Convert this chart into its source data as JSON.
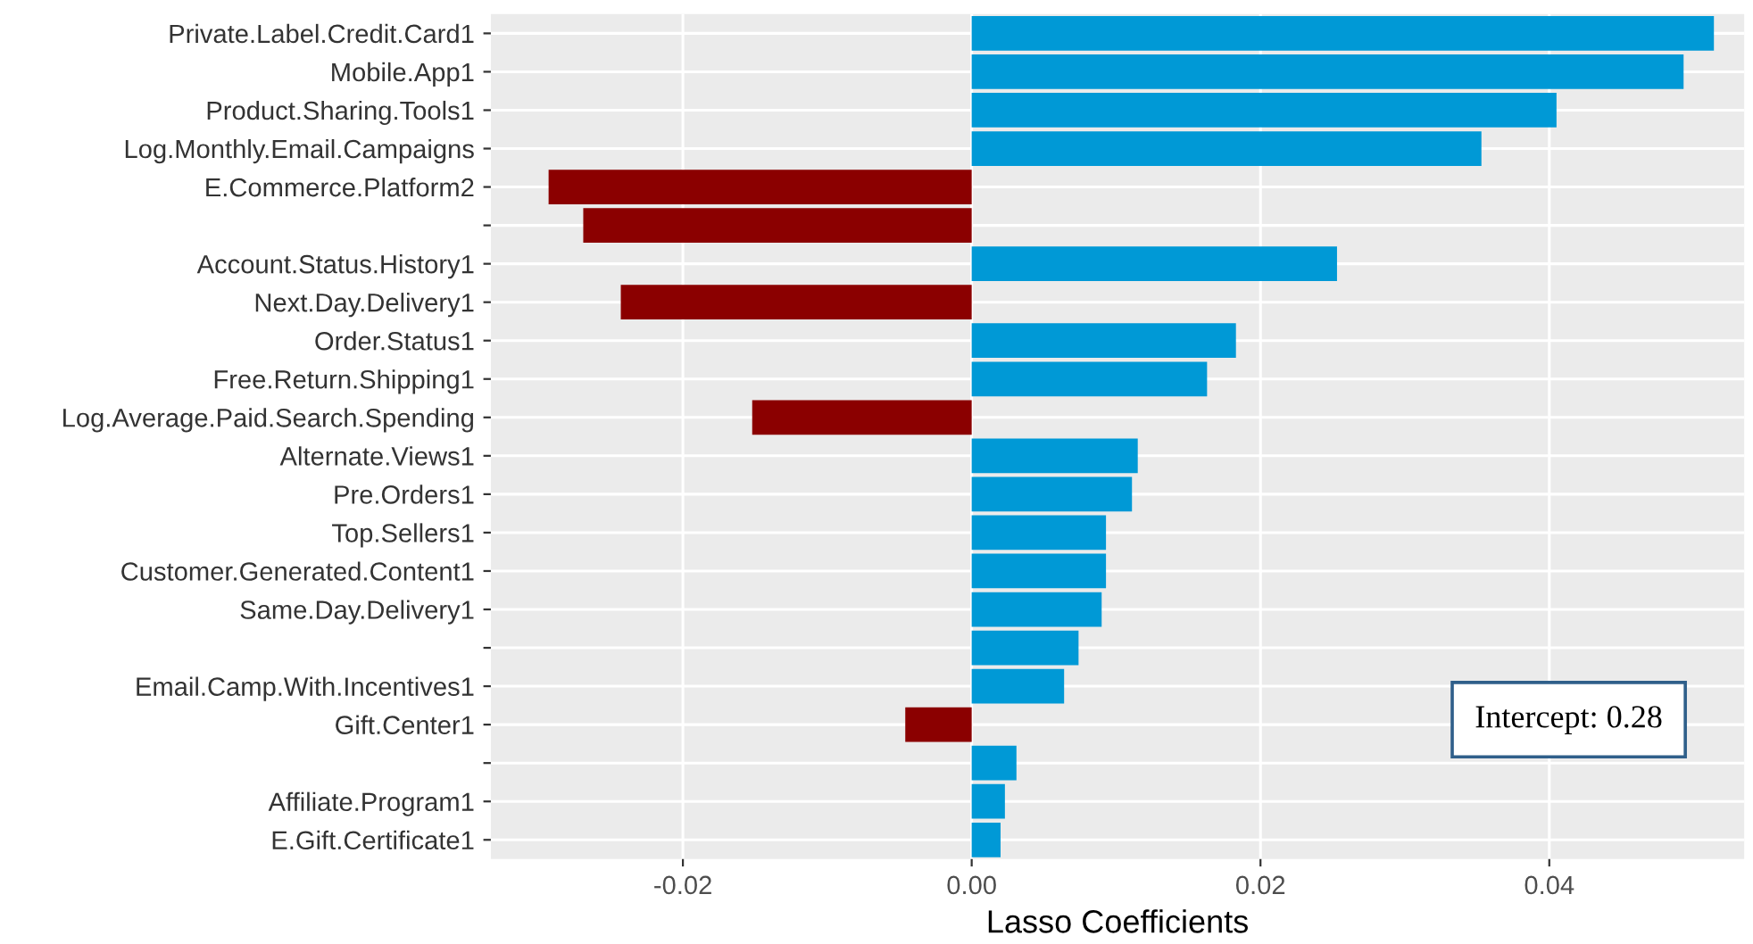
{
  "chart_data": {
    "type": "bar",
    "orientation": "horizontal",
    "xlabel": "Lasso Coefficients",
    "categories": [
      "Private.Label.Credit.Card1",
      "Mobile.App1",
      "Product.Sharing.Tools1",
      "Log.Monthly.Email.Campaigns",
      "E.Commerce.Platform2",
      null,
      "Account.Status.History1",
      "Next.Day.Delivery1",
      "Order.Status1",
      "Free.Return.Shipping1",
      "Log.Average.Paid.Search.Spending",
      "Alternate.Views1",
      "Pre.Orders1",
      "Top.Sellers1",
      "Customer.Generated.Content1",
      "Same.Day.Delivery1",
      null,
      "Email.Camp.With.Incentives1",
      "Gift.Center1",
      null,
      "Affiliate.Program1",
      "E.Gift.Certificate1"
    ],
    "values": [
      0.0514,
      0.0493,
      0.0405,
      0.0353,
      -0.0293,
      -0.0269,
      0.0253,
      -0.0243,
      0.0183,
      0.0163,
      -0.0152,
      0.0115,
      0.0111,
      0.0093,
      0.0093,
      0.009,
      0.0074,
      0.0064,
      -0.0046,
      0.0031,
      0.0023,
      0.002
    ],
    "colors": [
      "#0099d6",
      "#0099d6",
      "#0099d6",
      "#0099d6",
      "#8b0000",
      "#8b0000",
      "#0099d6",
      "#8b0000",
      "#0099d6",
      "#0099d6",
      "#8b0000",
      "#0099d6",
      "#0099d6",
      "#0099d6",
      "#0099d6",
      "#0099d6",
      "#0099d6",
      "#0099d6",
      "#8b0000",
      "#0099d6",
      "#0099d6",
      "#0099d6"
    ],
    "xlim": [
      -0.0333,
      0.0535
    ],
    "xticks": [
      {
        "value": -0.02,
        "label": "-0.02"
      },
      {
        "value": 0,
        "label": "0.00"
      },
      {
        "value": 0.02,
        "label": "0.02"
      },
      {
        "value": 0.04,
        "label": "0.04"
      }
    ],
    "grid": true,
    "annotations": [
      "Intercept: 0.28"
    ]
  }
}
